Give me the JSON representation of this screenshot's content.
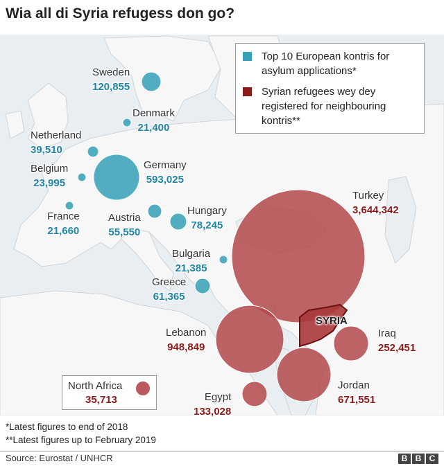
{
  "title": "Wia all di Syria refugess don go?",
  "legend": {
    "eu_label": "Top 10 European kontris for asylum applications*",
    "syria_label": "Syrian refugees wey dey registered for neighbouring kontris**",
    "eu_color": "#36a0b6",
    "syria_color": "#8b1a1a"
  },
  "syria_label": "SYRIA",
  "european_countries": [
    {
      "name": "Sweden",
      "value": "120,855"
    },
    {
      "name": "Denmark",
      "value": "21,400"
    },
    {
      "name": "Netherland",
      "value": "39,510"
    },
    {
      "name": "Belgium",
      "value": "23,995"
    },
    {
      "name": "Germany",
      "value": "593,025"
    },
    {
      "name": "France",
      "value": "21,660"
    },
    {
      "name": "Austria",
      "value": "55,550"
    },
    {
      "name": "Hungary",
      "value": "78,245"
    },
    {
      "name": "Bulgaria",
      "value": "21,385"
    },
    {
      "name": "Greece",
      "value": "61,365"
    }
  ],
  "neighbouring_countries": [
    {
      "name": "Turkey",
      "value": "3,644,342"
    },
    {
      "name": "Lebanon",
      "value": "948,849"
    },
    {
      "name": "Iraq",
      "value": "252,451"
    },
    {
      "name": "Jordan",
      "value": "671,551"
    },
    {
      "name": "Egypt",
      "value": "133,028"
    },
    {
      "name": "North Africa",
      "value": "35,713"
    }
  ],
  "footnotes": [
    "*Latest figures to end of 2018",
    "**Latest figures up to February 2019"
  ],
  "source": "Source: Eurostat / UNHCR",
  "logo": [
    "B",
    "B",
    "C"
  ]
}
